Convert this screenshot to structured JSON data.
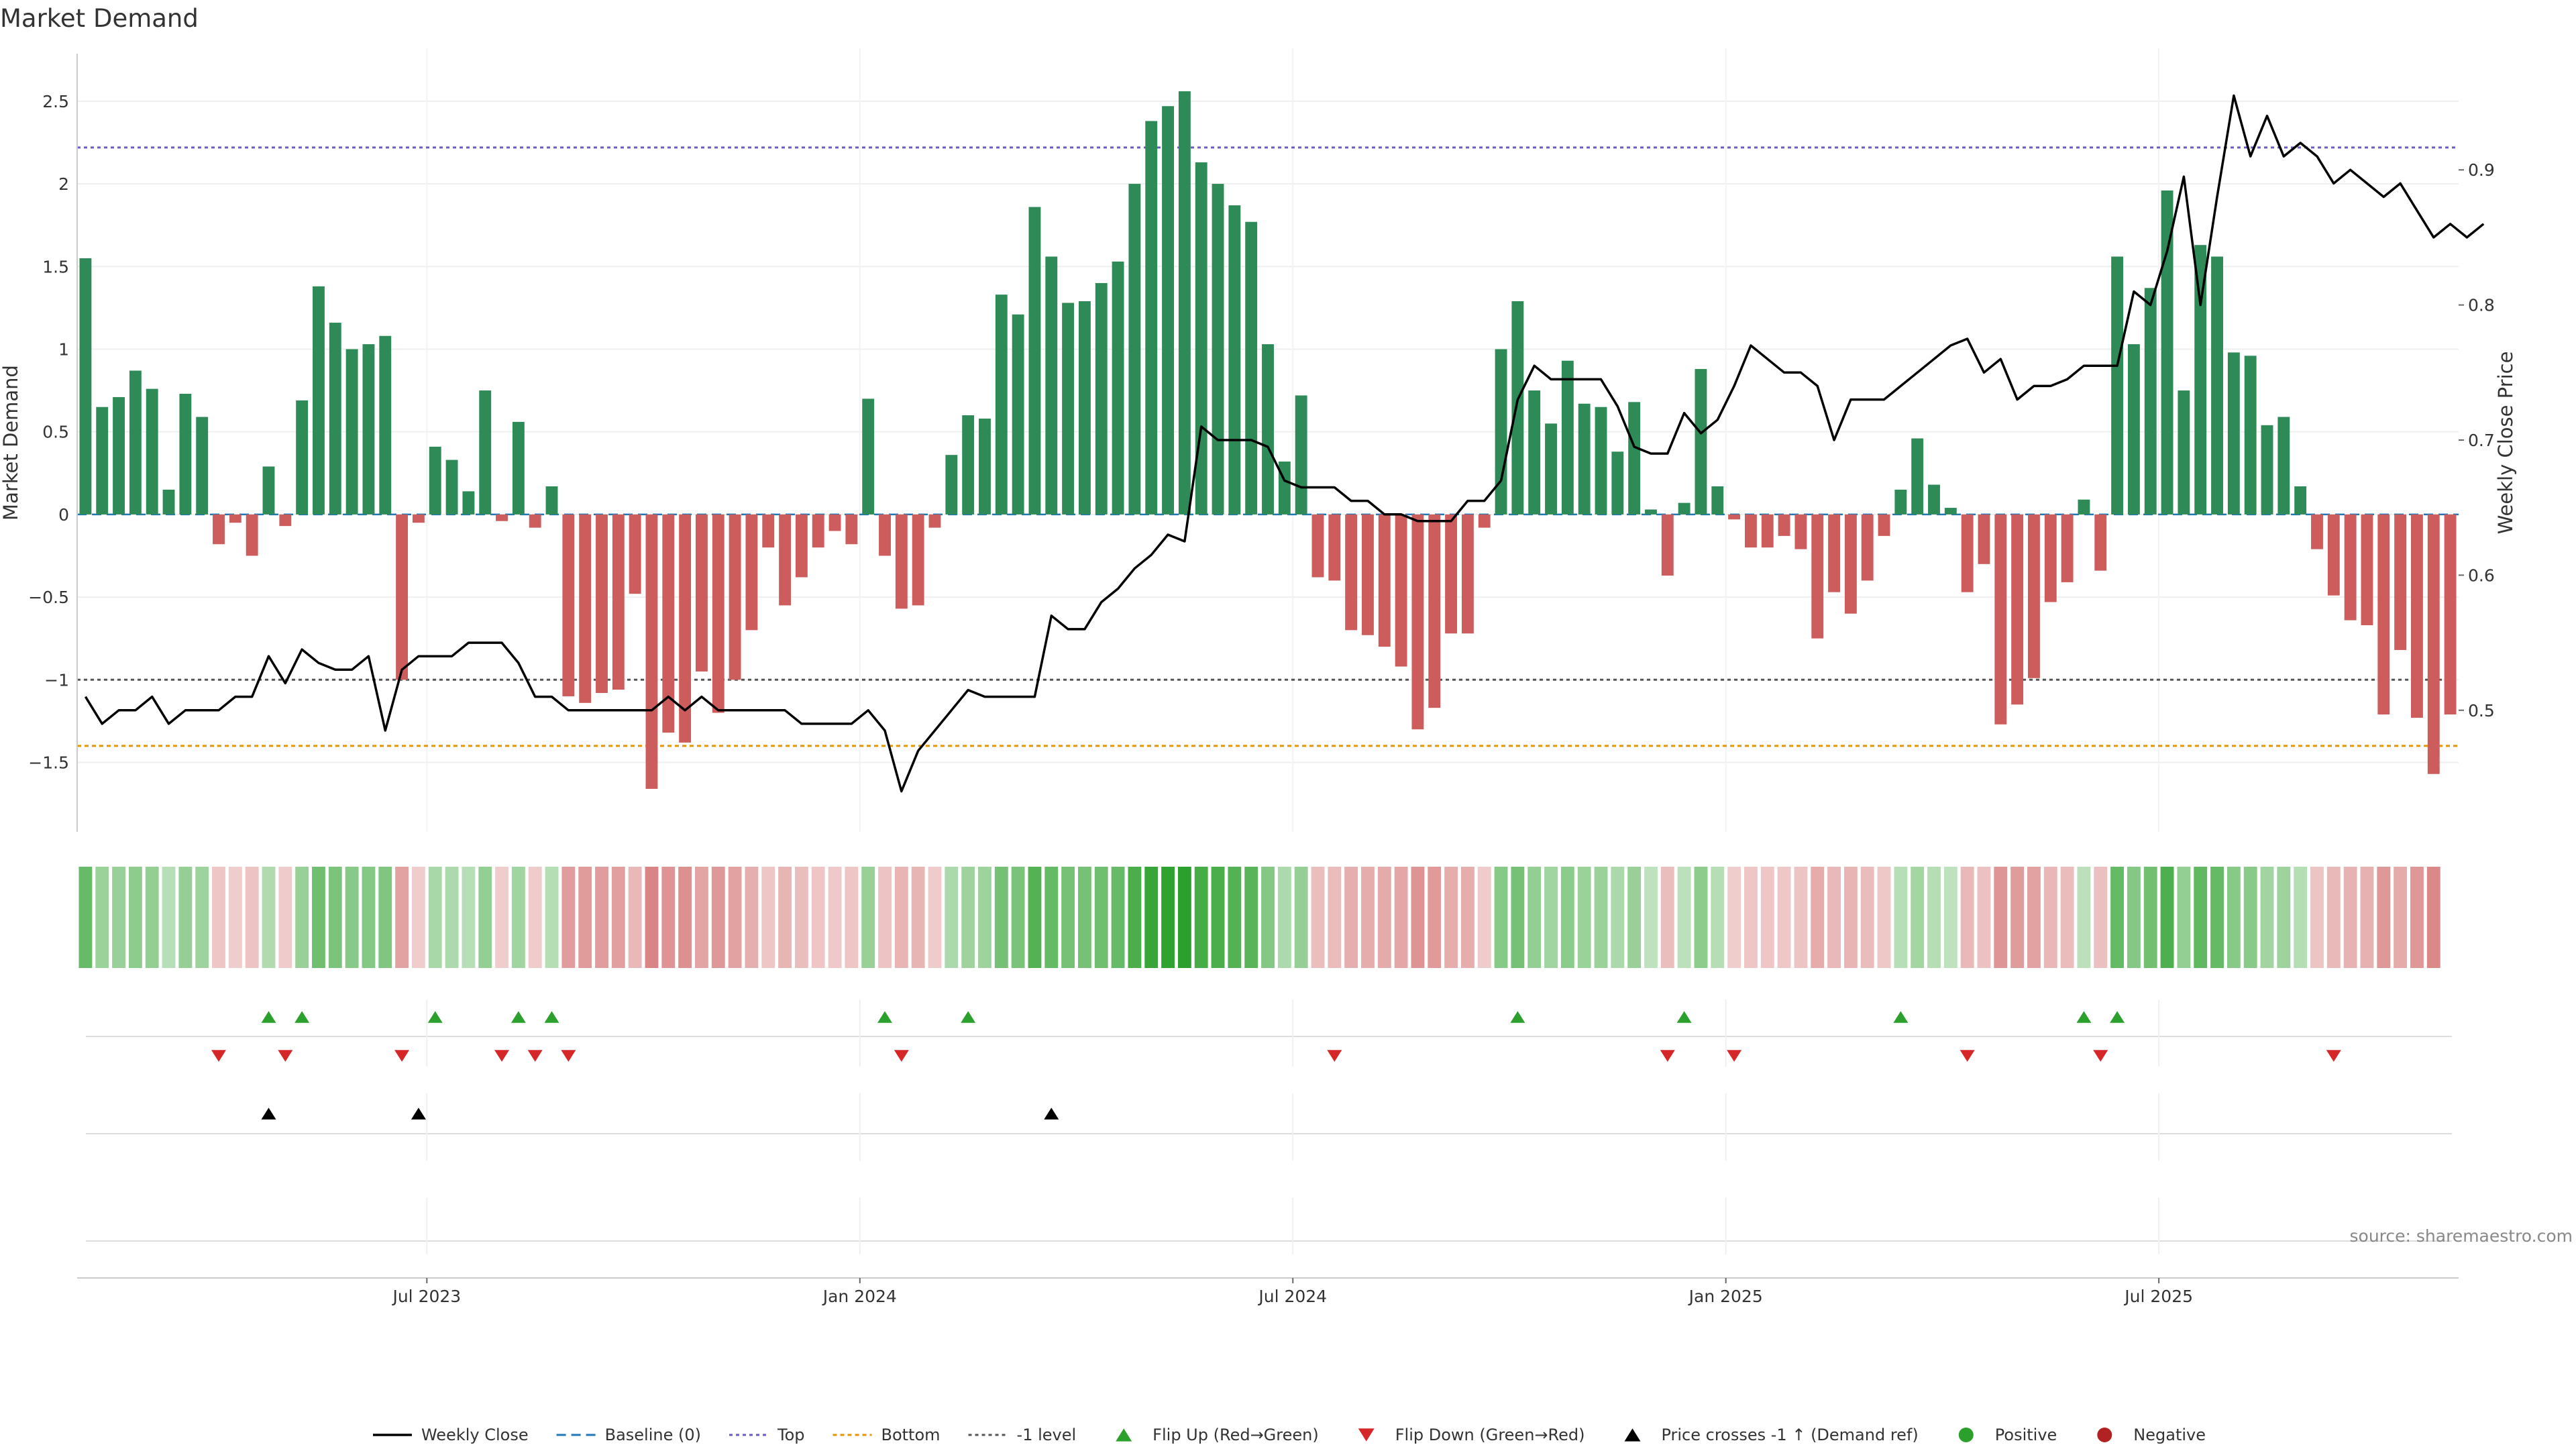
{
  "chart_data": {
    "type": "bar",
    "title": "Market Demand",
    "ylabel": "Market Demand",
    "y2label": "Weekly Close Price",
    "ylim": [
      -1.92,
      2.82
    ],
    "y2lim": [
      0.41,
      0.99
    ],
    "yticks": [
      2.5,
      2,
      1.5,
      1,
      0.5,
      0,
      -0.5,
      -1,
      -1.5
    ],
    "ytick_labels": [
      "2.5",
      "2",
      "1.5",
      "1",
      "0.5",
      "0",
      "−0.5",
      "−1",
      "−1.5"
    ],
    "y2ticks": [
      0.9,
      0.8,
      0.7,
      0.6,
      0.5
    ],
    "y2tick_labels": [
      "0.9",
      "0.8",
      "0.7",
      "0.6",
      "0.5"
    ],
    "x_ticks": [
      {
        "label": "Jul 2023",
        "week": 21
      },
      {
        "label": "Jan 2024",
        "week": 47
      },
      {
        "label": "Jul 2024",
        "week": 73
      },
      {
        "label": "Jan 2025",
        "week": 99
      },
      {
        "label": "Jul 2025",
        "week": 125
      }
    ],
    "levels": {
      "top": 2.22,
      "minus_one": -1.0,
      "bottom": -1.4,
      "baseline": 0
    },
    "demand": [
      1.55,
      0.65,
      0.71,
      0.87,
      0.76,
      0.15,
      0.73,
      0.59,
      -0.18,
      -0.05,
      -0.25,
      0.29,
      -0.07,
      0.69,
      1.38,
      1.16,
      1.0,
      1.03,
      1.08,
      -1.0,
      -0.05,
      0.41,
      0.33,
      0.14,
      0.75,
      -0.04,
      0.56,
      -0.08,
      0.17,
      -1.1,
      -1.14,
      -1.08,
      -1.06,
      -0.48,
      -1.66,
      -1.32,
      -1.38,
      -0.95,
      -1.2,
      -1.0,
      -0.7,
      -0.2,
      -0.55,
      -0.38,
      -0.2,
      -0.1,
      -0.18,
      0.7,
      -0.25,
      -0.57,
      -0.55,
      -0.08,
      0.36,
      0.6,
      0.58,
      1.33,
      1.21,
      1.86,
      1.56,
      1.28,
      1.29,
      1.4,
      1.53,
      2.0,
      2.38,
      2.47,
      2.56,
      2.13,
      2.0,
      1.87,
      1.77,
      1.03,
      0.32,
      0.72,
      -0.38,
      -0.4,
      -0.7,
      -0.73,
      -0.8,
      -0.92,
      -1.3,
      -1.17,
      -0.72,
      -0.72,
      -0.08,
      1.0,
      1.29,
      0.75,
      0.55,
      0.93,
      0.67,
      0.65,
      0.38,
      0.68,
      0.03,
      -0.37,
      0.07,
      0.88,
      0.17,
      -0.03,
      -0.2,
      -0.2,
      -0.13,
      -0.21,
      -0.75,
      -0.47,
      -0.6,
      -0.4,
      -0.13,
      0.15,
      0.46,
      0.18,
      0.04,
      -0.47,
      -0.3,
      -1.27,
      -1.15,
      -0.99,
      -0.53,
      -0.41,
      0.09,
      -0.34,
      1.56,
      1.03,
      1.37,
      1.96,
      0.75,
      1.63,
      1.56,
      0.98,
      0.96,
      0.54,
      0.59,
      0.17,
      -0.21,
      -0.49,
      -0.64,
      -0.67,
      -1.21,
      -0.82,
      -1.23,
      -1.57,
      -1.21
    ],
    "weekly_close": [
      0.51,
      0.49,
      0.5,
      0.5,
      0.51,
      0.49,
      0.5,
      0.5,
      0.5,
      0.51,
      0.51,
      0.54,
      0.52,
      0.545,
      0.535,
      0.53,
      0.53,
      0.54,
      0.485,
      0.53,
      0.54,
      0.54,
      0.54,
      0.55,
      0.55,
      0.55,
      0.535,
      0.51,
      0.51,
      0.5,
      0.5,
      0.5,
      0.5,
      0.5,
      0.5,
      0.51,
      0.5,
      0.51,
      0.5,
      0.5,
      0.5,
      0.5,
      0.5,
      0.49,
      0.49,
      0.49,
      0.49,
      0.5,
      0.485,
      0.44,
      0.47,
      0.485,
      0.5,
      0.515,
      0.51,
      0.51,
      0.51,
      0.51,
      0.57,
      0.56,
      0.56,
      0.58,
      0.59,
      0.605,
      0.615,
      0.63,
      0.625,
      0.71,
      0.7,
      0.7,
      0.7,
      0.695,
      0.67,
      0.665,
      0.665,
      0.665,
      0.655,
      0.655,
      0.645,
      0.645,
      0.64,
      0.64,
      0.64,
      0.655,
      0.655,
      0.67,
      0.73,
      0.755,
      0.745,
      0.745,
      0.745,
      0.745,
      0.725,
      0.695,
      0.69,
      0.69,
      0.72,
      0.705,
      0.715,
      0.74,
      0.77,
      0.76,
      0.75,
      0.75,
      0.74,
      0.7,
      0.73,
      0.73,
      0.73,
      0.74,
      0.75,
      0.76,
      0.77,
      0.775,
      0.75,
      0.76,
      0.73,
      0.74,
      0.74,
      0.745,
      0.755,
      0.755,
      0.755,
      0.81,
      0.8,
      0.84,
      0.895,
      0.8,
      0.88,
      0.955,
      0.91,
      0.94,
      0.91,
      0.92,
      0.91,
      0.89,
      0.9,
      0.89,
      0.88,
      0.89,
      0.87,
      0.85,
      0.86,
      0.85,
      0.86
    ],
    "heat_strips": 142,
    "flip_up_weeks": [
      11,
      13,
      21,
      26,
      28,
      48,
      53,
      86,
      96,
      109,
      120,
      122
    ],
    "flip_down_weeks": [
      8,
      12,
      19,
      25,
      27,
      29,
      49,
      75,
      95,
      99,
      113,
      121,
      135
    ],
    "cross_weeks": [
      11,
      20,
      58
    ],
    "legend": [
      {
        "label": "Weekly Close",
        "icon": "line-black"
      },
      {
        "label": "Baseline (0)",
        "icon": "dash-blue"
      },
      {
        "label": "Top",
        "icon": "dot-purple"
      },
      {
        "label": "Bottom",
        "icon": "dot-orange"
      },
      {
        "label": "-1 level",
        "icon": "dot-gray"
      },
      {
        "label": "Flip Up (Red→Green)",
        "icon": "triangle-up-green"
      },
      {
        "label": "Flip Down (Green→Red)",
        "icon": "triangle-down-red"
      },
      {
        "label": "Price crosses -1 ↑ (Demand ref)",
        "icon": "triangle-up-black"
      },
      {
        "label": "Positive",
        "icon": "circle-green"
      },
      {
        "label": "Negative",
        "icon": "circle-red"
      }
    ],
    "colors": {
      "positive": "#2e8b57",
      "negative": "#cd5c5c",
      "line": "#000000",
      "baseline": "#1f77b4",
      "top": "#6a5acd",
      "bottom": "#e69500",
      "minus_one": "#555555",
      "flip_up": "#2ca02c",
      "flip_down": "#d62728",
      "positive_dot": "#2ca02c",
      "negative_dot": "#b22222"
    },
    "source": "source: sharemaestro.com"
  }
}
